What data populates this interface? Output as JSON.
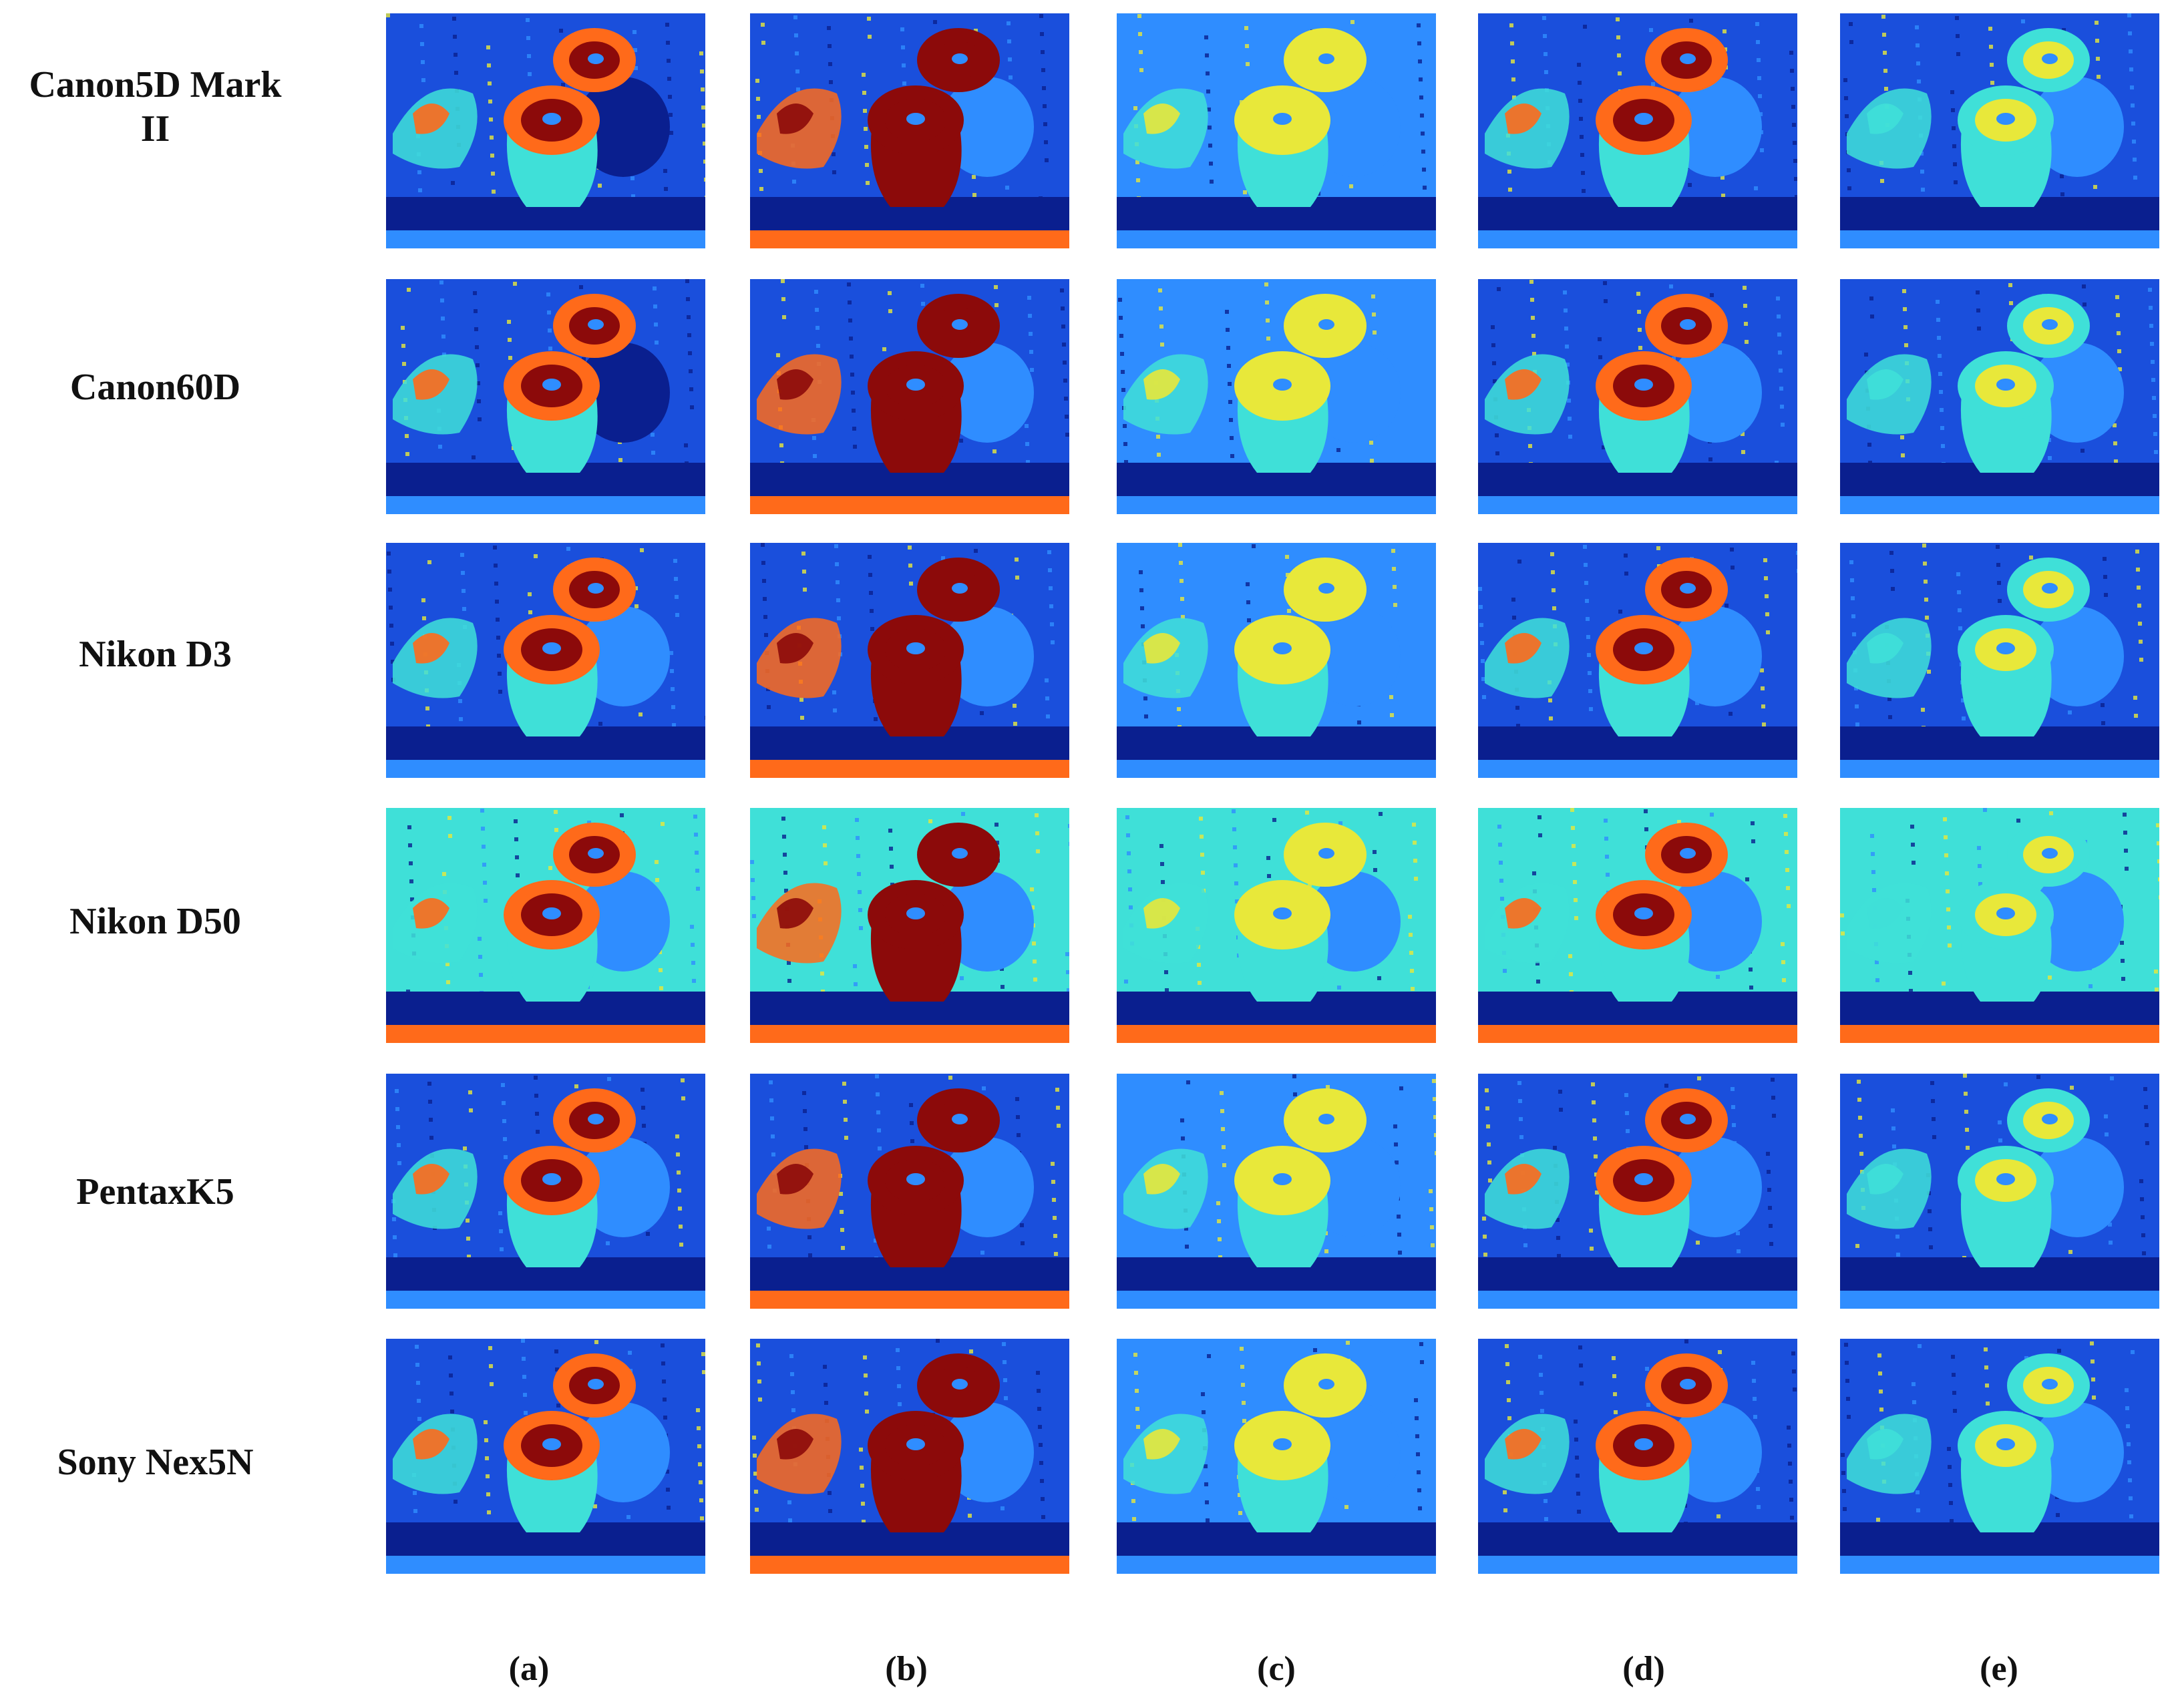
{
  "figure": {
    "row_labels": [
      "Canon5D Mark\nII",
      "Canon60D",
      "Nikon D3",
      "Nikon D50",
      "PentaxK5",
      "Sony Nex5N"
    ],
    "column_labels": [
      "(a)",
      "(b)",
      "(c)",
      "(d)",
      "(e)"
    ],
    "colormap": {
      "dark_blue": "#0a1f8f",
      "blue": "#1a4fdc",
      "light_blue": "#2f8dff",
      "cyan": "#3fe0d8",
      "yellow": "#e8e83a",
      "orange": "#ff6a1a",
      "dark_red": "#8c0a0a"
    },
    "tile_description": "pseudo-color heat map of a still-life scene (vase with flowers and round object)"
  }
}
